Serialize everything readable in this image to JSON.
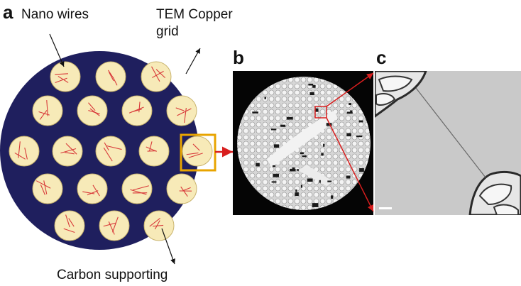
{
  "panels": {
    "a": {
      "letter": "a"
    },
    "b": {
      "letter": "b"
    },
    "c": {
      "letter": "c"
    }
  },
  "labels": {
    "nanowires": "Nano wires",
    "tem_line1": "TEM Copper",
    "tem_line2": "grid",
    "carbon": "Carbon supporting"
  },
  "colors": {
    "grid_disc": "#1f1f5e",
    "hole_fill": "#f7eab8",
    "hole_stroke": "#c9b46e",
    "nanowire": "#d83a3a",
    "highlight_box": "#e8a400",
    "zoom_arrow": "#d81e1e",
    "pointer": "#111111"
  },
  "icons": {
    "pointer_arrow": "arrow-right",
    "zoom_arrow": "arrow-right"
  },
  "grid_holes": {
    "rows": [
      3,
      4,
      5,
      4,
      3
    ],
    "highlighted_row": 2,
    "highlighted_col": 4
  }
}
